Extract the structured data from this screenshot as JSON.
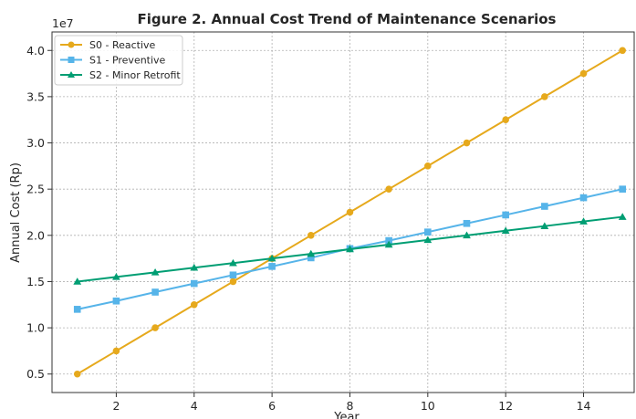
{
  "chart_data": {
    "type": "line",
    "title": "Figure 2. Annual Cost Trend of Maintenance Scenarios",
    "xlabel": "Year",
    "ylabel": "Annual Cost (Rp)",
    "y_offset_label": "1e7",
    "x": [
      1,
      2,
      3,
      4,
      5,
      6,
      7,
      8,
      9,
      10,
      11,
      12,
      13,
      14,
      15
    ],
    "xlim": [
      0.35,
      15.3
    ],
    "ylim": [
      0.3,
      4.2
    ],
    "x_ticks": [
      2,
      4,
      6,
      8,
      10,
      12,
      14
    ],
    "y_ticks": [
      0.5,
      1.0,
      1.5,
      2.0,
      2.5,
      3.0,
      3.5,
      4.0
    ],
    "x_tick_labels": [
      "2",
      "4",
      "6",
      "8",
      "10",
      "12",
      "14"
    ],
    "y_tick_labels": [
      "0.5",
      "1.0",
      "1.5",
      "2.0",
      "2.5",
      "3.0",
      "3.5",
      "4.0"
    ],
    "grid": true,
    "legend_position": "top-left",
    "series": [
      {
        "name": "S0 - Reactive",
        "color": "#E6A91C",
        "marker": "circle",
        "values": [
          0.5,
          0.75,
          1.0,
          1.25,
          1.5,
          1.75,
          2.0,
          2.25,
          2.5,
          2.75,
          3.0,
          3.25,
          3.5,
          3.75,
          4.0
        ]
      },
      {
        "name": "S1 - Preventive",
        "color": "#56B4E9",
        "marker": "square",
        "values": [
          1.2,
          1.29,
          1.386,
          1.479,
          1.571,
          1.664,
          1.757,
          1.857,
          1.943,
          2.036,
          2.129,
          2.221,
          2.314,
          2.407,
          2.5
        ]
      },
      {
        "name": "S2 - Minor Retrofit",
        "color": "#009E73",
        "marker": "triangle",
        "values": [
          1.5,
          1.55,
          1.6,
          1.65,
          1.7,
          1.75,
          1.8,
          1.85,
          1.9,
          1.95,
          2.0,
          2.05,
          2.1,
          2.15,
          2.2
        ]
      }
    ]
  }
}
